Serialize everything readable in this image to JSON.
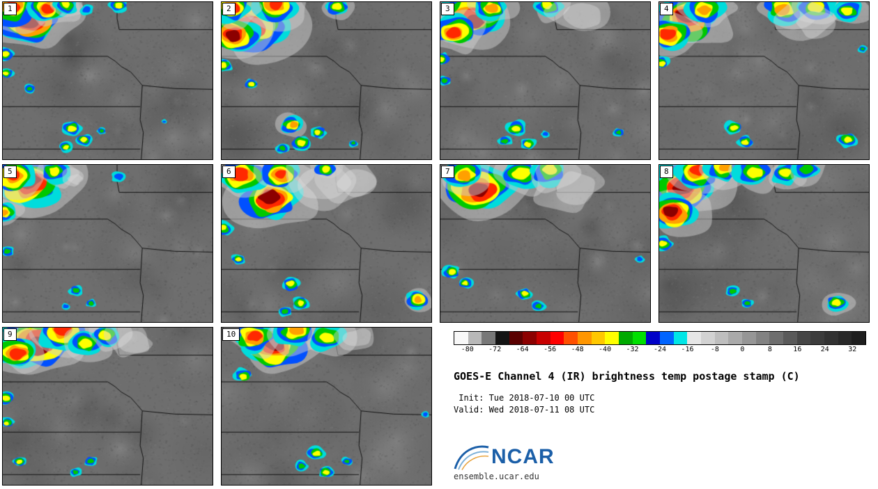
{
  "panels": [
    {
      "label": "1",
      "storms": [
        [
          0.13,
          0.1,
          0.14,
          1
        ],
        [
          0.05,
          0.05,
          0.1,
          0.9
        ],
        [
          0.22,
          0.03,
          0.08,
          0.8
        ],
        [
          0.3,
          0.02,
          0.05,
          0.6
        ],
        [
          0.01,
          0.33,
          0.04,
          0.6
        ],
        [
          0.02,
          0.45,
          0.03,
          0.5
        ],
        [
          0.13,
          0.55,
          0.025,
          0.45
        ],
        [
          0.33,
          0.8,
          0.045,
          0.6
        ],
        [
          0.39,
          0.88,
          0.035,
          0.55
        ],
        [
          0.3,
          0.92,
          0.03,
          0.5
        ],
        [
          0.47,
          0.82,
          0.02,
          0.4
        ],
        [
          0.77,
          0.76,
          0.012,
          0.35
        ],
        [
          0.55,
          0.02,
          0.04,
          0.5
        ],
        [
          0.4,
          0.05,
          0.03,
          0.3
        ]
      ]
    },
    {
      "label": "2",
      "storms": [
        [
          0.15,
          0.13,
          0.15,
          1
        ],
        [
          0.08,
          0.22,
          0.1,
          0.95
        ],
        [
          0.25,
          0.04,
          0.09,
          0.8
        ],
        [
          0.04,
          0.04,
          0.08,
          0.85
        ],
        [
          0.01,
          0.4,
          0.04,
          0.55
        ],
        [
          0.14,
          0.52,
          0.03,
          0.5
        ],
        [
          0.33,
          0.78,
          0.05,
          0.65
        ],
        [
          0.38,
          0.9,
          0.045,
          0.6
        ],
        [
          0.46,
          0.83,
          0.035,
          0.5
        ],
        [
          0.29,
          0.93,
          0.03,
          0.45
        ],
        [
          0.55,
          0.03,
          0.05,
          0.55
        ],
        [
          0.63,
          0.9,
          0.02,
          0.4
        ]
      ]
    },
    {
      "label": "3",
      "storms": [
        [
          0.14,
          0.08,
          0.13,
          1
        ],
        [
          0.06,
          0.18,
          0.09,
          0.85
        ],
        [
          0.24,
          0.03,
          0.07,
          0.7
        ],
        [
          0.01,
          0.36,
          0.035,
          0.55
        ],
        [
          0.02,
          0.5,
          0.03,
          0.45
        ],
        [
          0.36,
          0.8,
          0.045,
          0.6
        ],
        [
          0.42,
          0.9,
          0.035,
          0.5
        ],
        [
          0.31,
          0.88,
          0.03,
          0.45
        ],
        [
          0.5,
          0.84,
          0.02,
          0.35
        ],
        [
          0.52,
          0.03,
          0.06,
          0.55
        ],
        [
          0.65,
          0.06,
          0.1,
          0
        ],
        [
          0.85,
          0.83,
          0.025,
          0.4
        ]
      ]
    },
    {
      "label": "4",
      "storms": [
        [
          0.12,
          0.1,
          0.13,
          1
        ],
        [
          0.05,
          0.2,
          0.09,
          0.9
        ],
        [
          0.22,
          0.04,
          0.08,
          0.75
        ],
        [
          0.6,
          0.04,
          0.09,
          0.65
        ],
        [
          0.75,
          0.03,
          0.08,
          0.6
        ],
        [
          0.9,
          0.05,
          0.06,
          0.5
        ],
        [
          0.01,
          0.38,
          0.035,
          0.5
        ],
        [
          0.35,
          0.8,
          0.04,
          0.55
        ],
        [
          0.41,
          0.89,
          0.035,
          0.5
        ],
        [
          0.9,
          0.88,
          0.045,
          0.55
        ],
        [
          0.97,
          0.3,
          0.02,
          0.4
        ],
        [
          0.7,
          0.1,
          0.1,
          0
        ]
      ]
    },
    {
      "label": "5",
      "storms": [
        [
          0.13,
          0.1,
          0.14,
          1
        ],
        [
          0.05,
          0.06,
          0.09,
          0.85
        ],
        [
          0.01,
          0.3,
          0.05,
          0.7
        ],
        [
          0.25,
          0.05,
          0.06,
          0.6
        ],
        [
          0.33,
          0.08,
          0.04,
          0
        ],
        [
          0.02,
          0.55,
          0.03,
          0.45
        ],
        [
          0.35,
          0.8,
          0.03,
          0.45
        ],
        [
          0.42,
          0.88,
          0.025,
          0.4
        ],
        [
          0.3,
          0.9,
          0.02,
          0.35
        ],
        [
          0.55,
          0.08,
          0.03,
          0.3
        ]
      ]
    },
    {
      "label": "6",
      "storms": [
        [
          0.22,
          0.2,
          0.13,
          1
        ],
        [
          0.1,
          0.08,
          0.1,
          0.9
        ],
        [
          0.28,
          0.05,
          0.08,
          0.8
        ],
        [
          0.45,
          0.08,
          0.14,
          0
        ],
        [
          0.6,
          0.1,
          0.1,
          0
        ],
        [
          0.01,
          0.4,
          0.04,
          0.55
        ],
        [
          0.08,
          0.6,
          0.03,
          0.5
        ],
        [
          0.33,
          0.76,
          0.04,
          0.55
        ],
        [
          0.38,
          0.88,
          0.04,
          0.55
        ],
        [
          0.3,
          0.93,
          0.03,
          0.45
        ],
        [
          0.93,
          0.86,
          0.05,
          0.75
        ],
        [
          0.5,
          0.02,
          0.05,
          0.5
        ]
      ]
    },
    {
      "label": "7",
      "storms": [
        [
          0.2,
          0.13,
          0.14,
          1
        ],
        [
          0.1,
          0.05,
          0.08,
          0.7
        ],
        [
          0.38,
          0.06,
          0.09,
          0.6
        ],
        [
          0.52,
          0.04,
          0.08,
          0.55
        ],
        [
          0.6,
          0.12,
          0.12,
          0
        ],
        [
          0.05,
          0.68,
          0.04,
          0.6
        ],
        [
          0.12,
          0.75,
          0.03,
          0.5
        ],
        [
          0.4,
          0.82,
          0.035,
          0.5
        ],
        [
          0.47,
          0.9,
          0.03,
          0.45
        ],
        [
          0.95,
          0.6,
          0.02,
          0.35
        ]
      ]
    },
    {
      "label": "8",
      "storms": [
        [
          0.1,
          0.12,
          0.13,
          1
        ],
        [
          0.06,
          0.3,
          0.1,
          0.95
        ],
        [
          0.18,
          0.04,
          0.09,
          0.85
        ],
        [
          0.3,
          0.03,
          0.07,
          0.7
        ],
        [
          0.45,
          0.04,
          0.08,
          0.6
        ],
        [
          0.6,
          0.06,
          0.06,
          0.5
        ],
        [
          0.02,
          0.5,
          0.04,
          0.6
        ],
        [
          0.35,
          0.8,
          0.03,
          0.45
        ],
        [
          0.42,
          0.88,
          0.025,
          0.4
        ],
        [
          0.85,
          0.88,
          0.05,
          0.6
        ],
        [
          0.7,
          0.03,
          0.06,
          0.45
        ]
      ]
    },
    {
      "label": "9",
      "storms": [
        [
          0.15,
          0.08,
          0.15,
          1
        ],
        [
          0.28,
          0.04,
          0.1,
          0.9
        ],
        [
          0.05,
          0.15,
          0.09,
          0.85
        ],
        [
          0.4,
          0.1,
          0.07,
          0.6
        ],
        [
          0.5,
          0.05,
          0.06,
          0.5
        ],
        [
          0.01,
          0.45,
          0.04,
          0.55
        ],
        [
          0.02,
          0.6,
          0.03,
          0.5
        ],
        [
          0.08,
          0.85,
          0.03,
          0.5
        ],
        [
          0.42,
          0.85,
          0.03,
          0.45
        ],
        [
          0.35,
          0.92,
          0.025,
          0.4
        ],
        [
          0.6,
          0.08,
          0.08,
          0
        ]
      ]
    },
    {
      "label": "10",
      "storms": [
        [
          0.25,
          0.12,
          0.13,
          1
        ],
        [
          0.15,
          0.05,
          0.09,
          0.8
        ],
        [
          0.35,
          0.04,
          0.08,
          0.7
        ],
        [
          0.5,
          0.06,
          0.08,
          0.5
        ],
        [
          0.1,
          0.3,
          0.04,
          0.6
        ],
        [
          0.45,
          0.8,
          0.04,
          0.55
        ],
        [
          0.5,
          0.92,
          0.035,
          0.5
        ],
        [
          0.38,
          0.88,
          0.03,
          0.45
        ],
        [
          0.6,
          0.85,
          0.025,
          0.4
        ],
        [
          0.97,
          0.55,
          0.02,
          0.35
        ],
        [
          0.62,
          0.05,
          0.07,
          0
        ]
      ]
    }
  ],
  "colorbar": {
    "min": -84,
    "max": 36,
    "step": 4,
    "ticks": [
      -80,
      -72,
      -64,
      -56,
      -48,
      -40,
      -32,
      -24,
      -16,
      -8,
      0,
      8,
      16,
      24,
      32
    ],
    "colors": [
      "#f8f8f8",
      "#b8b8b8",
      "#787878",
      "#141414",
      "#5a0000",
      "#8c0000",
      "#c80000",
      "#ff0000",
      "#ff5000",
      "#ff9600",
      "#ffc800",
      "#ffff00",
      "#00aa00",
      "#00e000",
      "#0000c8",
      "#0064ff",
      "#00e6e6",
      "#e6e6e6",
      "#d2d2d2",
      "#bebebe",
      "#aaaaaa",
      "#969696",
      "#828282",
      "#6e6e6e",
      "#5a5a5a",
      "#464646",
      "#3c3c3c",
      "#323232",
      "#282828",
      "#1e1e1e"
    ]
  },
  "info": {
    "title": "GOES-E Channel 4 (IR) brightness temp postage stamp (C)",
    "init_line": " Init: Tue 2018-07-10 00 UTC",
    "valid_line": "Valid: Wed 2018-07-11 08 UTC",
    "logo_text": "NCAR",
    "site": "ensemble.ucar.edu"
  },
  "colors": {
    "land_gray": "#6e6e6e",
    "border_black": "#000000",
    "logo_blue": "#1b5fa8"
  }
}
